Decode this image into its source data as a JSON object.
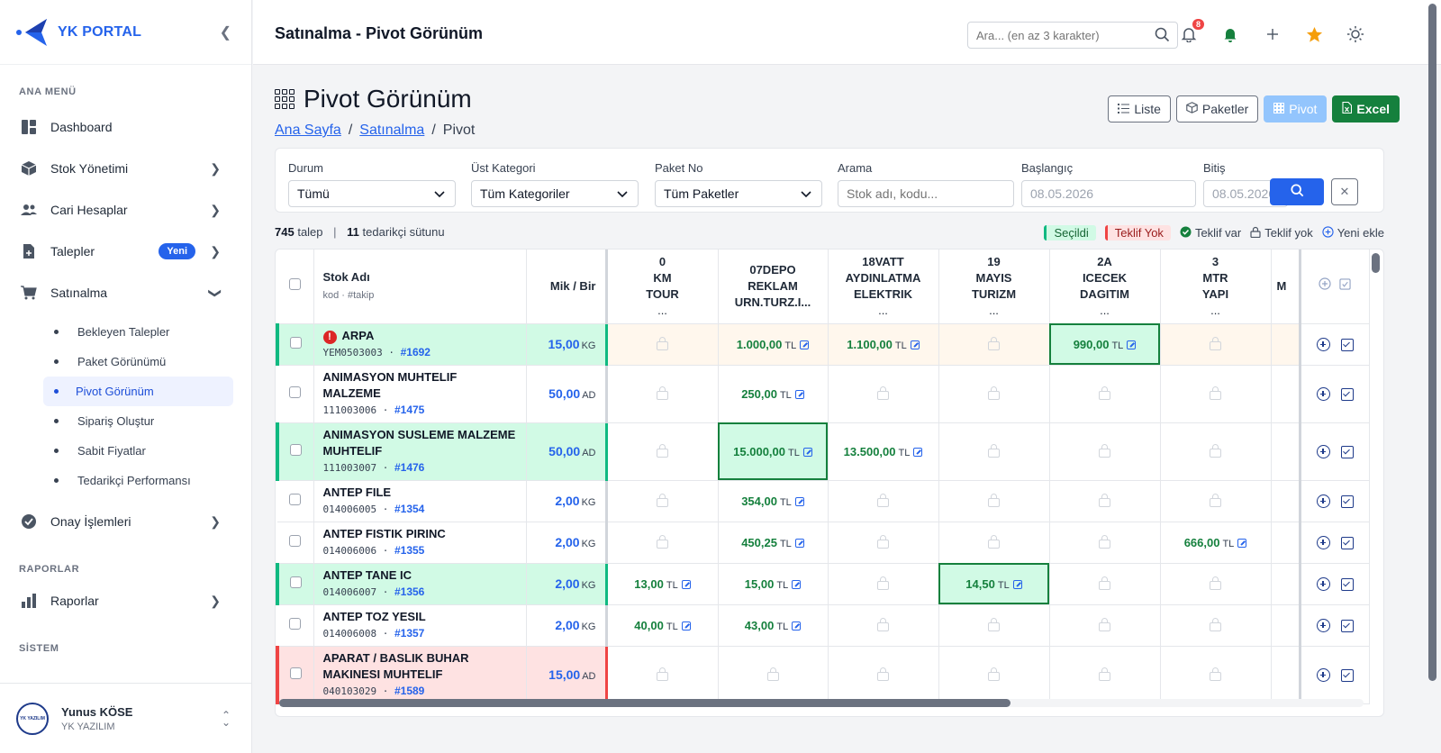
{
  "brand": {
    "name": "YK PORTAL"
  },
  "sidebar": {
    "sections": [
      {
        "label": "ANA MENÜ"
      },
      {
        "label": "RAPORLAR"
      },
      {
        "label": "SİSTEM"
      }
    ],
    "items": [
      {
        "label": "Dashboard",
        "icon": "dashboard-icon"
      },
      {
        "label": "Stok Yönetimi",
        "icon": "box-icon"
      },
      {
        "label": "Cari Hesaplar",
        "icon": "users-icon"
      },
      {
        "label": "Talepler",
        "icon": "document-icon",
        "badge": "Yeni"
      },
      {
        "label": "Satınalma",
        "icon": "cart-icon"
      },
      {
        "label": "Onay İşlemleri",
        "icon": "check-circle-icon"
      },
      {
        "label": "Raporlar",
        "icon": "bar-chart-icon"
      }
    ],
    "subitems": [
      {
        "label": "Bekleyen Talepler"
      },
      {
        "label": "Paket Görünümü"
      },
      {
        "label": "Pivot Görünüm",
        "active": true
      },
      {
        "label": "Sipariş Oluştur"
      },
      {
        "label": "Sabit Fiyatlar"
      },
      {
        "label": "Tedarikçi Performansı"
      }
    ]
  },
  "user": {
    "name": "Yunus KÖSE",
    "org": "YK YAZILIM",
    "avatar_text": "YK YAZILIM"
  },
  "topbar": {
    "title": "Satınalma - Pivot Görünüm",
    "search_placeholder": "Ara... (en az 3 karakter)",
    "notification_count": "8"
  },
  "page": {
    "title": "Pivot Görünüm",
    "breadcrumb": [
      "Ana Sayfa",
      "Satınalma",
      "Pivot"
    ],
    "buttons": {
      "liste": "Liste",
      "paketler": "Paketler",
      "pivot": "Pivot",
      "excel": "Excel"
    }
  },
  "filters": {
    "durum": {
      "label": "Durum",
      "value": "Tümü"
    },
    "ust_kategori": {
      "label": "Üst Kategori",
      "value": "Tüm Kategoriler"
    },
    "paket_no": {
      "label": "Paket No",
      "value": "Tüm Paketler"
    },
    "arama": {
      "label": "Arama",
      "placeholder": "Stok adı, kodu..."
    },
    "baslangic": {
      "label": "Başlangıç",
      "value": "08.05.2026"
    },
    "bitis": {
      "label": "Bitiş",
      "value": "08.05.2026"
    }
  },
  "summary": {
    "talep_count": "745",
    "talep_label": "talep",
    "supplier_count": "11",
    "supplier_label": "tedarikçi sütunu",
    "legend": {
      "secildi": "Seçildi",
      "teklif_yok_tag": "Teklif Yok",
      "teklif_var": "Teklif var",
      "teklif_yok": "Teklif yok",
      "yeni_ekle": "Yeni ekle"
    },
    "colors": {
      "selected": "#10b981",
      "none": "#ef4444",
      "price": "#15803d",
      "accent": "#2563eb"
    }
  },
  "table": {
    "header": {
      "stok": "Stok Adı",
      "stok_sub": "kod · #takip",
      "mik": "Mik / Bir"
    },
    "suppliers": [
      {
        "l1": "0",
        "l2": "KM",
        "l3": "TOUR",
        "l4": "..."
      },
      {
        "l1": "07DEPO",
        "l2": "REKLAM",
        "l3": "URN.TURZ.I...",
        "l4": ""
      },
      {
        "l1": "18VATT",
        "l2": "AYDINLATMA",
        "l3": "ELEKTRIK",
        "l4": "..."
      },
      {
        "l1": "19",
        "l2": "MAYIS",
        "l3": "TURIZM",
        "l4": "..."
      },
      {
        "l1": "2A",
        "l2": "ICECEK",
        "l3": "DAGITIM",
        "l4": "..."
      },
      {
        "l1": "3",
        "l2": "MTR",
        "l3": "YAPI",
        "l4": "..."
      },
      {
        "l1": "",
        "l2": "M",
        "l3": "",
        "l4": ""
      }
    ],
    "rows": [
      {
        "name": "ARPA",
        "code": "YEM0503003",
        "track": "#1692",
        "qty": "15,00",
        "unit": "KG",
        "status": "sel",
        "alert": "!",
        "cells": [
          null,
          "1.000,00",
          "1.100,00",
          null,
          "990,00",
          null
        ],
        "picked": 4
      },
      {
        "name": "ANIMASYON MUHTELIF MALZEME",
        "code": "111003006",
        "track": "#1475",
        "qty": "50,00",
        "unit": "AD",
        "status": "",
        "cells": [
          null,
          "250,00",
          null,
          null,
          null,
          null
        ],
        "picked": -1
      },
      {
        "name": "ANIMASYON SUSLEME MALZEME MUHTELIF",
        "code": "111003007",
        "track": "#1476",
        "qty": "50,00",
        "unit": "AD",
        "status": "sel",
        "cells": [
          null,
          "15.000,00",
          "13.500,00",
          null,
          null,
          null
        ],
        "picked": 1
      },
      {
        "name": "ANTEP FILE",
        "code": "014006005",
        "track": "#1354",
        "qty": "2,00",
        "unit": "KG",
        "status": "",
        "cells": [
          null,
          "354,00",
          null,
          null,
          null,
          null
        ],
        "picked": -1
      },
      {
        "name": "ANTEP FISTIK PIRINC",
        "code": "014006006",
        "track": "#1355",
        "qty": "2,00",
        "unit": "KG",
        "status": "",
        "cells": [
          null,
          "450,25",
          null,
          null,
          null,
          "666,00"
        ],
        "picked": -1
      },
      {
        "name": "ANTEP TANE IC",
        "code": "014006007",
        "track": "#1356",
        "qty": "2,00",
        "unit": "KG",
        "status": "sel",
        "cells": [
          "13,00",
          "15,00",
          null,
          "14,50",
          null,
          null
        ],
        "picked": 3
      },
      {
        "name": "ANTEP TOZ YESIL",
        "code": "014006008",
        "track": "#1357",
        "qty": "2,00",
        "unit": "KG",
        "status": "",
        "cells": [
          "40,00",
          "43,00",
          null,
          null,
          null,
          null
        ],
        "picked": -1
      },
      {
        "name": "APARAT / BASLIK BUHAR MAKINESI MUHTELIF",
        "code": "040103029",
        "track": "#1589",
        "qty": "15,00",
        "unit": "AD",
        "status": "none",
        "cells": [
          null,
          null,
          null,
          null,
          null,
          null
        ],
        "picked": -1
      }
    ],
    "currency": "TL"
  }
}
